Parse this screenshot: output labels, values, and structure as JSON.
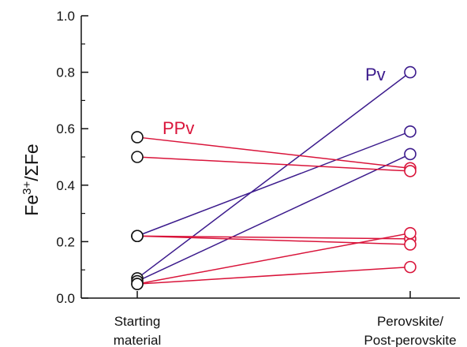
{
  "chart_data": {
    "type": "line",
    "categories": [
      "Starting material",
      "Perovskite/ Post-perovskite"
    ],
    "category_lines": [
      [
        "Starting",
        "material"
      ],
      [
        "Perovskite/",
        "Post-perovskite"
      ]
    ],
    "ylabel_main": "Fe",
    "ylabel_sup": "3+",
    "ylabel_tail": "/ΣFe",
    "ylim": [
      0,
      1.0
    ],
    "yticks": [
      "0.0",
      "0.2",
      "0.4",
      "0.6",
      "0.8",
      "1.0"
    ],
    "yticks_values": [
      0,
      0.2,
      0.4,
      0.6,
      0.8,
      1.0
    ],
    "grid": false,
    "series": [
      {
        "name": "Pv",
        "color": "#3b1a8c",
        "pairs": [
          [
            0.22,
            0.59
          ],
          [
            0.07,
            0.8
          ],
          [
            0.06,
            0.51
          ]
        ]
      },
      {
        "name": "PPv",
        "color": "#d9143a",
        "pairs": [
          [
            0.57,
            0.46
          ],
          [
            0.5,
            0.45
          ],
          [
            0.22,
            0.21
          ],
          [
            0.22,
            0.19
          ],
          [
            0.05,
            0.23
          ],
          [
            0.05,
            0.11
          ]
        ]
      }
    ],
    "marker_edge_color": "#111111"
  }
}
